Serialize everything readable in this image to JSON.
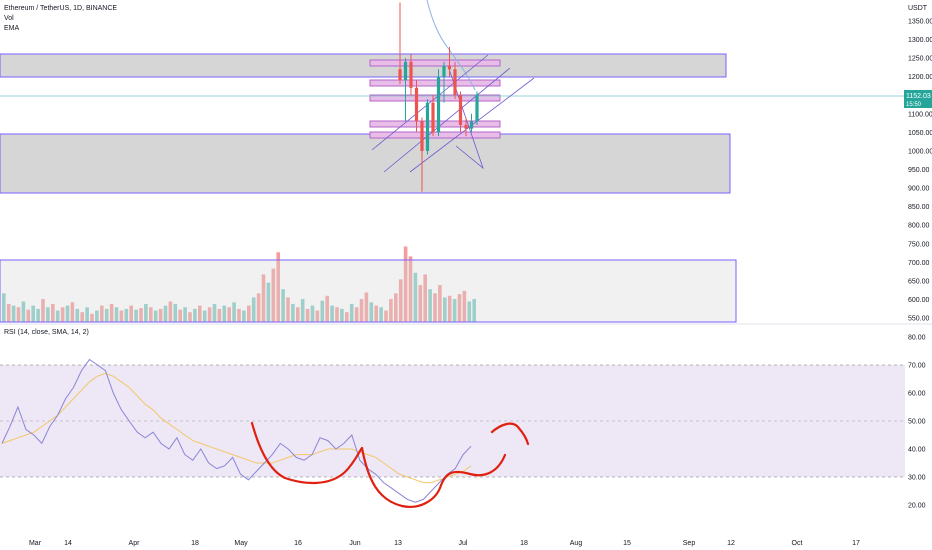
{
  "legend": {
    "symbol": "Ethereum / TetherUS, 1D, BINANCE",
    "vol": "Vol",
    "ema": "EMA",
    "rsi": "RSI (14, close, SMA, 14, 2)"
  },
  "colors": {
    "up": "#26a69a",
    "down": "#ef5350",
    "up_vol": "#80cbc4",
    "down_vol": "#f49b9b",
    "zone_fill": "#d1d1d1",
    "zone_border": "#7b61ff",
    "pink_fill": "#e8bde8",
    "rsi_line": "#8a86d6",
    "rsi_ma": "#f3c768",
    "rsi_band": "#ede7f6",
    "drawing": "#e02010",
    "ema": "#8fb3e0",
    "price_line": "#78c8c8",
    "last_price_bg": "#26a69a"
  },
  "chart_data": {
    "type": "candlestick",
    "price_axis_unit": "USDT",
    "price_ticks": [
      1350,
      1300,
      1250,
      1200,
      1150,
      1100,
      1050,
      1000,
      950,
      900,
      850,
      800,
      750,
      700,
      650,
      600,
      550
    ],
    "last_price": "1152.03",
    "countdown": "15:50",
    "rsi_ticks": [
      80,
      70,
      60,
      50,
      40,
      30,
      20
    ],
    "x_ticks": [
      "Mar",
      "14",
      "Apr",
      "18",
      "May",
      "16",
      "Jun",
      "13",
      "Jul",
      "18",
      "Aug",
      "15",
      "Sep",
      "12",
      "Oct",
      "17"
    ],
    "candles": [
      {
        "o": 1220,
        "h": 1400,
        "l": 1180,
        "c": 1190
      },
      {
        "o": 1190,
        "h": 1250,
        "l": 1080,
        "c": 1240
      },
      {
        "o": 1240,
        "h": 1260,
        "l": 1150,
        "c": 1170
      },
      {
        "o": 1170,
        "h": 1190,
        "l": 1050,
        "c": 1080
      },
      {
        "o": 1080,
        "h": 1090,
        "l": 890,
        "c": 1000
      },
      {
        "o": 1000,
        "h": 1140,
        "l": 990,
        "c": 1130
      },
      {
        "o": 1130,
        "h": 1150,
        "l": 1040,
        "c": 1050
      },
      {
        "o": 1050,
        "h": 1220,
        "l": 1040,
        "c": 1200
      },
      {
        "o": 1200,
        "h": 1240,
        "l": 1130,
        "c": 1230
      },
      {
        "o": 1230,
        "h": 1280,
        "l": 1200,
        "c": 1220
      },
      {
        "o": 1220,
        "h": 1240,
        "l": 1140,
        "c": 1150
      },
      {
        "o": 1150,
        "h": 1160,
        "l": 1050,
        "c": 1070
      },
      {
        "o": 1070,
        "h": 1090,
        "l": 1040,
        "c": 1060
      },
      {
        "o": 1060,
        "h": 1100,
        "l": 1050,
        "c": 1080
      },
      {
        "o": 1080,
        "h": 1160,
        "l": 1070,
        "c": 1152
      }
    ],
    "volume_ticks_note": "",
    "volume": [
      {
        "v": 0.35,
        "up": true
      },
      {
        "v": 0.22,
        "up": false
      },
      {
        "v": 0.2,
        "up": true
      },
      {
        "v": 0.18,
        "up": false
      },
      {
        "v": 0.25,
        "up": true
      },
      {
        "v": 0.15,
        "up": false
      },
      {
        "v": 0.2,
        "up": true
      },
      {
        "v": 0.16,
        "up": true
      },
      {
        "v": 0.28,
        "up": false
      },
      {
        "v": 0.18,
        "up": true
      },
      {
        "v": 0.22,
        "up": false
      },
      {
        "v": 0.14,
        "up": true
      },
      {
        "v": 0.18,
        "up": false
      },
      {
        "v": 0.2,
        "up": true
      },
      {
        "v": 0.24,
        "up": false
      },
      {
        "v": 0.16,
        "up": true
      },
      {
        "v": 0.12,
        "up": false
      },
      {
        "v": 0.18,
        "up": true
      },
      {
        "v": 0.1,
        "up": false
      },
      {
        "v": 0.14,
        "up": true
      },
      {
        "v": 0.2,
        "up": false
      },
      {
        "v": 0.16,
        "up": true
      },
      {
        "v": 0.22,
        "up": false
      },
      {
        "v": 0.18,
        "up": true
      },
      {
        "v": 0.14,
        "up": false
      },
      {
        "v": 0.16,
        "up": true
      },
      {
        "v": 0.2,
        "up": false
      },
      {
        "v": 0.15,
        "up": true
      },
      {
        "v": 0.17,
        "up": false
      },
      {
        "v": 0.22,
        "up": true
      },
      {
        "v": 0.18,
        "up": false
      },
      {
        "v": 0.14,
        "up": true
      },
      {
        "v": 0.16,
        "up": false
      },
      {
        "v": 0.2,
        "up": true
      },
      {
        "v": 0.25,
        "up": false
      },
      {
        "v": 0.22,
        "up": true
      },
      {
        "v": 0.15,
        "up": false
      },
      {
        "v": 0.18,
        "up": true
      },
      {
        "v": 0.12,
        "up": false
      },
      {
        "v": 0.16,
        "up": true
      },
      {
        "v": 0.2,
        "up": false
      },
      {
        "v": 0.14,
        "up": true
      },
      {
        "v": 0.18,
        "up": false
      },
      {
        "v": 0.22,
        "up": true
      },
      {
        "v": 0.16,
        "up": false
      },
      {
        "v": 0.2,
        "up": true
      },
      {
        "v": 0.18,
        "up": false
      },
      {
        "v": 0.24,
        "up": true
      },
      {
        "v": 0.16,
        "up": false
      },
      {
        "v": 0.14,
        "up": true
      },
      {
        "v": 0.2,
        "up": false
      },
      {
        "v": 0.3,
        "up": true
      },
      {
        "v": 0.35,
        "up": false
      },
      {
        "v": 0.58,
        "up": false
      },
      {
        "v": 0.48,
        "up": true
      },
      {
        "v": 0.65,
        "up": false
      },
      {
        "v": 0.85,
        "up": false
      },
      {
        "v": 0.4,
        "up": true
      },
      {
        "v": 0.3,
        "up": false
      },
      {
        "v": 0.22,
        "up": true
      },
      {
        "v": 0.18,
        "up": false
      },
      {
        "v": 0.28,
        "up": true
      },
      {
        "v": 0.16,
        "up": false
      },
      {
        "v": 0.2,
        "up": true
      },
      {
        "v": 0.14,
        "up": false
      },
      {
        "v": 0.26,
        "up": true
      },
      {
        "v": 0.32,
        "up": false
      },
      {
        "v": 0.2,
        "up": true
      },
      {
        "v": 0.18,
        "up": false
      },
      {
        "v": 0.16,
        "up": true
      },
      {
        "v": 0.12,
        "up": false
      },
      {
        "v": 0.22,
        "up": true
      },
      {
        "v": 0.18,
        "up": false
      },
      {
        "v": 0.28,
        "up": false
      },
      {
        "v": 0.36,
        "up": false
      },
      {
        "v": 0.24,
        "up": true
      },
      {
        "v": 0.2,
        "up": false
      },
      {
        "v": 0.18,
        "up": true
      },
      {
        "v": 0.14,
        "up": false
      },
      {
        "v": 0.28,
        "up": false
      },
      {
        "v": 0.35,
        "up": false
      },
      {
        "v": 0.52,
        "up": false
      },
      {
        "v": 0.92,
        "up": false
      },
      {
        "v": 0.8,
        "up": false
      },
      {
        "v": 0.6,
        "up": true
      },
      {
        "v": 0.45,
        "up": false
      },
      {
        "v": 0.58,
        "up": false
      },
      {
        "v": 0.4,
        "up": true
      },
      {
        "v": 0.35,
        "up": false
      },
      {
        "v": 0.45,
        "up": false
      },
      {
        "v": 0.3,
        "up": true
      },
      {
        "v": 0.32,
        "up": false
      },
      {
        "v": 0.28,
        "up": true
      },
      {
        "v": 0.34,
        "up": false
      },
      {
        "v": 0.38,
        "up": false
      },
      {
        "v": 0.25,
        "up": true
      },
      {
        "v": 0.28,
        "up": true
      }
    ],
    "rsi": [
      42,
      48,
      55,
      47,
      45,
      42,
      48,
      52,
      58,
      62,
      68,
      72,
      70,
      68,
      60,
      54,
      50,
      46,
      44,
      46,
      42,
      40,
      44,
      38,
      36,
      40,
      35,
      33,
      34,
      37,
      31,
      29,
      32,
      35,
      38,
      42,
      40,
      37,
      36,
      38,
      44,
      43,
      40,
      42,
      45,
      36,
      33,
      31,
      28,
      26,
      24,
      22,
      21,
      22,
      25,
      28,
      31,
      33,
      38,
      41
    ],
    "rsi_ma": [
      42,
      43,
      44,
      45,
      46,
      48,
      50,
      52,
      55,
      58,
      61,
      64,
      66,
      67,
      66,
      64,
      62,
      59,
      56,
      54,
      51,
      49,
      47,
      45,
      43,
      42,
      41,
      40,
      39,
      38,
      37,
      36,
      35,
      35,
      35,
      36,
      37,
      38,
      38,
      38,
      39,
      40,
      40,
      40,
      40,
      39,
      38,
      37,
      35,
      33,
      31,
      30,
      29,
      28,
      28,
      29,
      30,
      31,
      32,
      34
    ]
  }
}
